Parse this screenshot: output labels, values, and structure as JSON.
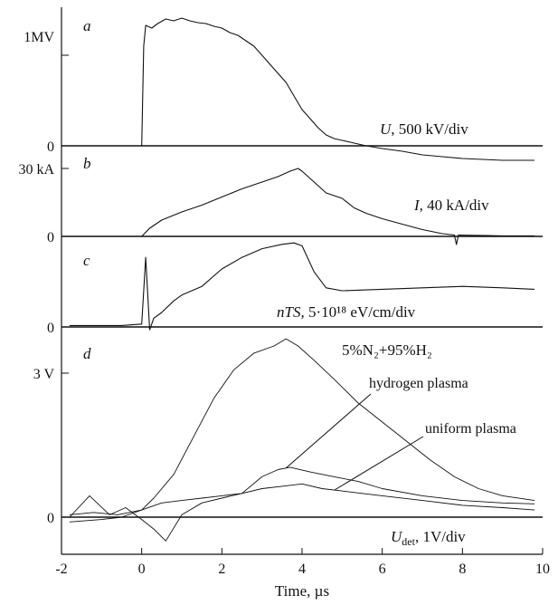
{
  "chart_data": [
    {
      "type": "line",
      "panel_letter": "a",
      "quantity_label": "U",
      "scale_label": "500 kV/div",
      "y_ticks": [
        "1MV",
        "0"
      ],
      "xlim": [
        -2,
        10
      ],
      "series": [
        {
          "x": [
            0,
            0.05,
            0.1,
            0.25,
            0.4,
            0.6,
            0.8,
            1.0,
            1.2,
            1.4,
            1.6,
            1.8,
            2.0,
            2.2,
            2.4,
            2.6,
            2.8,
            3.0,
            3.2,
            3.4,
            3.6,
            3.8,
            4.0,
            4.2,
            4.4,
            4.6,
            4.8,
            5.0,
            5.3,
            5.6,
            6.0,
            6.5,
            7.0,
            7.5,
            8.0,
            8.5,
            9.0,
            9.5,
            9.8
          ],
          "y": [
            0,
            1.1,
            1.33,
            1.3,
            1.35,
            1.4,
            1.38,
            1.41,
            1.38,
            1.36,
            1.35,
            1.32,
            1.3,
            1.25,
            1.22,
            1.16,
            1.1,
            1.0,
            0.9,
            0.8,
            0.7,
            0.55,
            0.4,
            0.3,
            0.2,
            0.12,
            0.08,
            0.06,
            0.03,
            0.0,
            -0.03,
            -0.06,
            -0.1,
            -0.12,
            -0.14,
            -0.15,
            -0.16,
            -0.16,
            -0.16
          ]
        }
      ]
    },
    {
      "type": "line",
      "panel_letter": "b",
      "quantity_label": "I",
      "scale_label": "40 kA/div",
      "y_ticks": [
        "30 kA",
        "0"
      ],
      "xlim": [
        -2,
        10
      ],
      "series": [
        {
          "x": [
            0,
            0.2,
            0.5,
            1.0,
            1.5,
            2.0,
            2.5,
            3.0,
            3.4,
            3.7,
            3.9,
            4.0,
            4.3,
            4.6,
            5.0,
            5.3,
            5.6,
            6.0,
            6.5,
            7.0,
            7.5,
            7.8,
            7.85,
            7.9,
            8.2,
            8.6,
            9.0,
            9.5,
            9.8
          ],
          "y": [
            0,
            0.3,
            0.6,
            0.9,
            1.15,
            1.45,
            1.75,
            2.0,
            2.2,
            2.4,
            2.5,
            2.4,
            2.0,
            1.6,
            1.4,
            1.05,
            0.85,
            0.65,
            0.45,
            0.25,
            0.1,
            0.05,
            -0.3,
            0.05,
            0.04,
            0.03,
            0.02,
            0.02,
            0.02
          ]
        }
      ]
    },
    {
      "type": "line",
      "panel_letter": "c",
      "quantity_label": "nTS,",
      "scale_label": "5·10¹⁸ eV/cm/div",
      "y_ticks": [
        "0"
      ],
      "xlim": [
        -2,
        10
      ],
      "series": [
        {
          "x": [
            -1.8,
            -1.5,
            -1.0,
            -0.5,
            0,
            0.1,
            0.2,
            0.3,
            0.5,
            0.8,
            1.0,
            1.5,
            2.0,
            2.5,
            3.0,
            3.5,
            3.8,
            4.0,
            4.3,
            4.6,
            5.0,
            6.0,
            7.0,
            8.0,
            9.0,
            9.8
          ],
          "y": [
            0.05,
            0.05,
            0.05,
            0.05,
            0.1,
            2.4,
            -0.1,
            0.3,
            0.5,
            0.9,
            1.1,
            1.4,
            2.0,
            2.4,
            2.7,
            2.85,
            2.9,
            2.8,
            1.9,
            1.35,
            1.25,
            1.3,
            1.35,
            1.4,
            1.35,
            1.3
          ]
        }
      ]
    },
    {
      "type": "line",
      "panel_letter": "d",
      "quantity_label": "U",
      "quantity_subscript": "det",
      "scale_label": "1V/div",
      "y_ticks": [
        "3 V",
        "0"
      ],
      "x_ticks": [
        -2,
        0,
        2,
        4,
        6,
        8,
        10
      ],
      "xlim": [
        -2,
        10
      ],
      "xlabel": "Time, µs",
      "annotations": [
        "5%N₂+95%H₂",
        "hydrogen plasma",
        "uniform plasma"
      ],
      "series": [
        {
          "name": "5%N₂+95%H₂",
          "x": [
            -1.8,
            -1.2,
            -0.6,
            0,
            0.3,
            0.8,
            1.3,
            1.8,
            2.3,
            2.8,
            3.3,
            3.6,
            3.9,
            4.3,
            4.8,
            5.4,
            6.0,
            6.6,
            7.2,
            7.8,
            8.4,
            9.0,
            9.8
          ],
          "y": [
            0.05,
            0.1,
            0.05,
            0.15,
            0.4,
            0.9,
            1.7,
            2.5,
            3.1,
            3.45,
            3.6,
            3.75,
            3.6,
            3.3,
            2.9,
            2.4,
            2.0,
            1.6,
            1.2,
            0.85,
            0.6,
            0.45,
            0.35
          ]
        },
        {
          "name": "hydrogen plasma",
          "x": [
            -1.8,
            -1.3,
            -0.8,
            -0.4,
            0,
            0.3,
            0.6,
            1.0,
            1.5,
            2.0,
            2.5,
            3.0,
            3.4,
            3.7,
            4.2,
            4.8,
            5.4,
            6.0,
            7.0,
            8.0,
            9.0,
            9.8
          ],
          "y": [
            0.0,
            0.45,
            0.05,
            0.2,
            -0.05,
            -0.25,
            -0.5,
            0.05,
            0.3,
            0.4,
            0.5,
            0.85,
            1.0,
            1.05,
            0.95,
            0.85,
            0.75,
            0.6,
            0.45,
            0.35,
            0.3,
            0.28
          ]
        },
        {
          "name": "uniform plasma",
          "x": [
            -1.8,
            -1.0,
            -0.5,
            0,
            0.5,
            1.0,
            1.5,
            2.0,
            2.5,
            3.0,
            3.5,
            4.0,
            4.5,
            5.0,
            5.5,
            6.0,
            7.0,
            8.0,
            9.0,
            9.8
          ],
          "y": [
            -0.1,
            -0.05,
            0.0,
            0.15,
            0.3,
            0.35,
            0.4,
            0.45,
            0.5,
            0.6,
            0.65,
            0.7,
            0.6,
            0.55,
            0.5,
            0.45,
            0.35,
            0.25,
            0.2,
            0.15
          ]
        }
      ]
    }
  ]
}
